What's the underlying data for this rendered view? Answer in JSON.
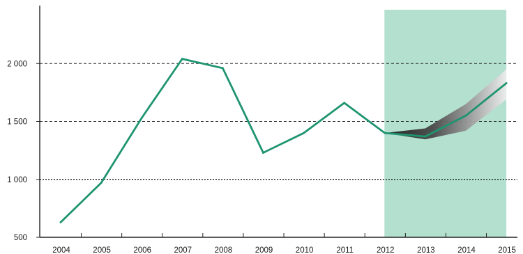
{
  "chart_data": {
    "type": "line",
    "title": "",
    "xlabel": "",
    "ylabel": "",
    "categories": [
      "2004",
      "2005",
      "2006",
      "2007",
      "2008",
      "2009",
      "2010",
      "2011",
      "2012",
      "2013",
      "2014",
      "2015"
    ],
    "series": [
      {
        "values": [
          630,
          970,
          1530,
          2040,
          1960,
          1230,
          1400,
          1660,
          1400,
          1370,
          1550,
          1830
        ],
        "color": "#1f9470"
      }
    ],
    "forecast_band": {
      "categories": [
        "2012",
        "2013",
        "2014",
        "2015"
      ],
      "lower": [
        1400,
        1345,
        1420,
        1690
      ],
      "upper": [
        1400,
        1440,
        1650,
        1950
      ]
    },
    "forecast_region": {
      "from": "2012",
      "to": "2015",
      "color": "#b3e0cf"
    },
    "ylim": [
      500,
      2500
    ],
    "yticks": [
      {
        "value": 500,
        "label": "500"
      },
      {
        "value": 1000,
        "label": "1 000"
      },
      {
        "value": 1500,
        "label": "1 500"
      },
      {
        "value": 2000,
        "label": "2 000"
      }
    ],
    "gridlines": [
      {
        "value": 1000,
        "style": "dotted"
      },
      {
        "value": 1500,
        "style": "dashed"
      },
      {
        "value": 2000,
        "style": "dashed"
      }
    ],
    "grid": true,
    "legend": "none"
  }
}
